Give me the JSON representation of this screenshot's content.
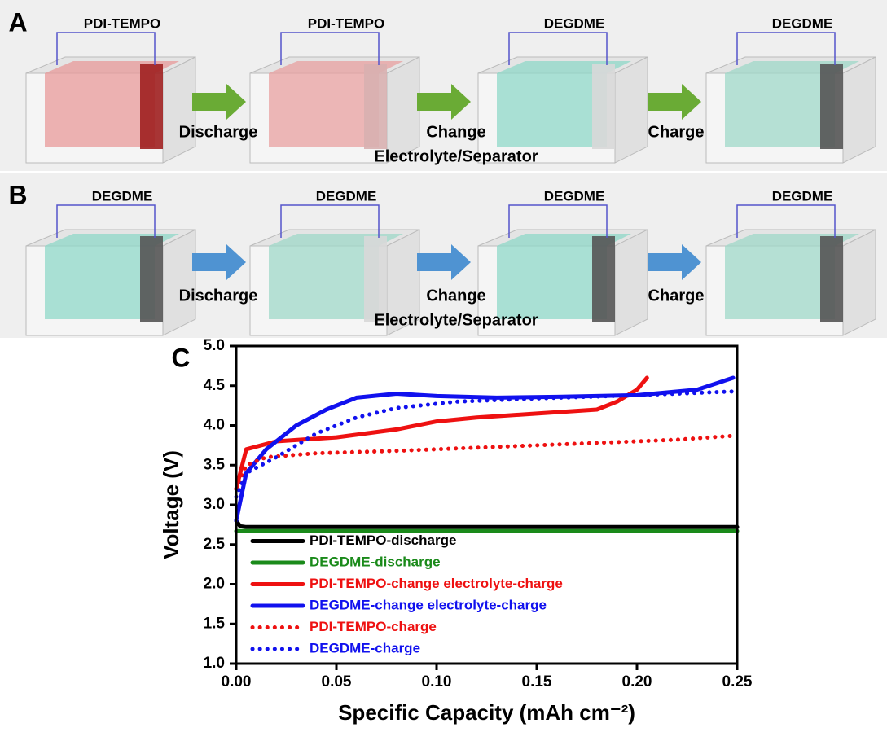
{
  "panels": [
    {
      "label": "A",
      "cells": [
        "PDI-TEMPO",
        "PDI-TEMPO",
        "DEGDME",
        "DEGDME"
      ],
      "steps": [
        [
          "Discharge"
        ],
        [
          "Change",
          "Electrolyte/Separator"
        ],
        [
          "Charge"
        ]
      ]
    },
    {
      "label": "B",
      "cells": [
        "DEGDME",
        "DEGDME",
        "DEGDME",
        "DEGDME"
      ],
      "steps": [
        [
          "Discharge"
        ],
        [
          "Change",
          "Electrolyte/Separator"
        ],
        [
          "Charge"
        ]
      ]
    }
  ],
  "chart_data": {
    "type": "line",
    "label": "C",
    "xlabel": "Specific Capacity (mAh cm⁻²)",
    "ylabel": "Voltage (V)",
    "xlim": [
      0,
      0.25
    ],
    "ylim": [
      1,
      5
    ],
    "xticks": [
      {
        "value": 0,
        "label": "0.00"
      },
      0.05,
      {
        "value": 0.1,
        "label": "0.10"
      },
      0.15,
      {
        "value": 0.2,
        "label": "0.20"
      },
      0.25
    ],
    "yticks": [
      {
        "value": 1,
        "label": "1.0"
      },
      1.5,
      {
        "value": 2,
        "label": "2.0"
      },
      2.5,
      {
        "value": 3,
        "label": "3.0"
      },
      3.5,
      {
        "value": 4,
        "label": "4.0"
      },
      4.5,
      {
        "value": 5,
        "label": "5.0"
      }
    ],
    "legend": "lower left",
    "series": [
      {
        "name": "PDI-TEMPO-discharge",
        "color": "#000000",
        "style": "solid",
        "x": [
          0,
          0.002,
          0.005,
          0.05,
          0.1,
          0.15,
          0.2,
          0.25
        ],
        "values": [
          2.8,
          2.73,
          2.72,
          2.72,
          2.72,
          2.72,
          2.72,
          2.72
        ]
      },
      {
        "name": "DEGDME-discharge",
        "color": "#1a8a1a",
        "style": "solid",
        "x": [
          0,
          0.05,
          0.1,
          0.15,
          0.2,
          0.25
        ],
        "values": [
          2.67,
          2.67,
          2.67,
          2.67,
          2.67,
          2.67
        ]
      },
      {
        "name": "PDI-TEMPO-change electrolyte-charge",
        "color": "#ee1111",
        "style": "solid",
        "x": [
          0,
          0.005,
          0.02,
          0.05,
          0.08,
          0.1,
          0.12,
          0.15,
          0.18,
          0.19,
          0.2,
          0.205
        ],
        "values": [
          3.2,
          3.7,
          3.8,
          3.85,
          3.95,
          4.05,
          4.1,
          4.15,
          4.2,
          4.3,
          4.45,
          4.6
        ]
      },
      {
        "name": "DEGDME-change electrolyte-charge",
        "color": "#1111ee",
        "style": "solid",
        "x": [
          0,
          0.005,
          0.015,
          0.03,
          0.045,
          0.06,
          0.08,
          0.1,
          0.13,
          0.16,
          0.2,
          0.23,
          0.248
        ],
        "values": [
          2.8,
          3.4,
          3.7,
          4.0,
          4.2,
          4.35,
          4.4,
          4.37,
          4.35,
          4.36,
          4.38,
          4.45,
          4.6
        ]
      },
      {
        "name": "PDI-TEMPO-charge",
        "color": "#ee1111",
        "style": "dotted",
        "x": [
          0,
          0.005,
          0.015,
          0.04,
          0.08,
          0.12,
          0.17,
          0.22,
          0.248
        ],
        "values": [
          3.2,
          3.5,
          3.6,
          3.65,
          3.68,
          3.72,
          3.77,
          3.82,
          3.87
        ]
      },
      {
        "name": "DEGDME-charge",
        "color": "#1111ee",
        "style": "dotted",
        "x": [
          0,
          0.005,
          0.02,
          0.04,
          0.06,
          0.08,
          0.11,
          0.15,
          0.2,
          0.25
        ],
        "values": [
          3.1,
          3.4,
          3.6,
          3.9,
          4.1,
          4.22,
          4.3,
          4.34,
          4.38,
          4.43
        ]
      }
    ]
  }
}
